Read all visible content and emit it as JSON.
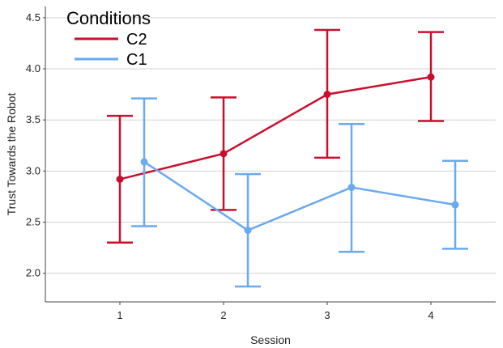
{
  "chart_data": {
    "type": "line",
    "title": "",
    "xlabel": "Session",
    "ylabel": "Trust Towards the Robot",
    "categories": [
      "1",
      "2",
      "3",
      "4"
    ],
    "ylim": [
      1.72,
      4.61
    ],
    "yticks": [
      "2.0",
      "2.5",
      "3.0",
      "3.5",
      "4.0",
      "4.5"
    ],
    "grid": "horizontal",
    "error_bars": true,
    "legend": {
      "title": "Conditions",
      "position": "top-left"
    },
    "series": [
      {
        "name": "C2",
        "color": "#C8102E",
        "values": [
          2.92,
          3.17,
          3.75,
          3.92
        ],
        "lower": [
          2.3,
          2.62,
          3.13,
          3.49
        ],
        "upper": [
          3.54,
          3.72,
          4.38,
          4.36
        ]
      },
      {
        "name": "C1",
        "color": "#6AAAF0",
        "values": [
          3.09,
          2.42,
          2.84,
          2.67
        ],
        "lower": [
          2.46,
          1.87,
          2.21,
          2.24
        ],
        "upper": [
          3.71,
          2.97,
          3.46,
          3.1
        ]
      }
    ]
  }
}
